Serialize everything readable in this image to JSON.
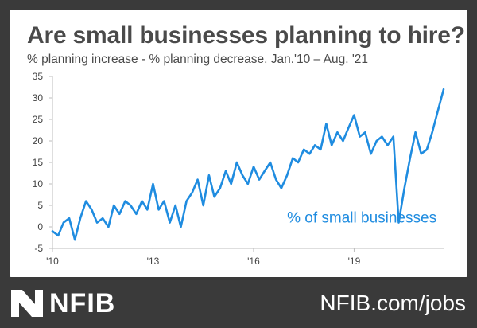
{
  "chart_data": {
    "type": "line",
    "title": "Are small businesses planning to hire?",
    "subtitle": "% planning increase - % planning decrease, Jan.'10 – Aug. '21",
    "xlabel": "",
    "ylabel": "",
    "xlim": [
      2010.0,
      2021.67
    ],
    "ylim": [
      -5,
      35
    ],
    "y_ticks": [
      "35",
      "30",
      "25",
      "20",
      "15",
      "10",
      "5",
      "0",
      "-5"
    ],
    "x_ticks": [
      {
        "value": 2010,
        "label": "'10"
      },
      {
        "value": 2013,
        "label": "'13"
      },
      {
        "value": 2016,
        "label": "'16"
      },
      {
        "value": 2019,
        "label": "'19"
      }
    ],
    "grid": false,
    "series": [
      {
        "name": "% of small businesses",
        "color": "#1f8ce0",
        "points": [
          [
            2010.0,
            -1
          ],
          [
            2010.17,
            -2
          ],
          [
            2010.33,
            1
          ],
          [
            2010.5,
            2
          ],
          [
            2010.67,
            -3
          ],
          [
            2010.83,
            2
          ],
          [
            2011.0,
            6
          ],
          [
            2011.17,
            4
          ],
          [
            2011.33,
            1
          ],
          [
            2011.5,
            2
          ],
          [
            2011.67,
            0
          ],
          [
            2011.83,
            5
          ],
          [
            2012.0,
            3
          ],
          [
            2012.17,
            6
          ],
          [
            2012.33,
            5
          ],
          [
            2012.5,
            3
          ],
          [
            2012.67,
            6
          ],
          [
            2012.83,
            4
          ],
          [
            2013.0,
            10
          ],
          [
            2013.17,
            4
          ],
          [
            2013.33,
            6
          ],
          [
            2013.5,
            1
          ],
          [
            2013.67,
            5
          ],
          [
            2013.83,
            0
          ],
          [
            2014.0,
            6
          ],
          [
            2014.17,
            8
          ],
          [
            2014.33,
            11
          ],
          [
            2014.5,
            5
          ],
          [
            2014.67,
            12
          ],
          [
            2014.83,
            7
          ],
          [
            2015.0,
            9
          ],
          [
            2015.17,
            13
          ],
          [
            2015.33,
            10
          ],
          [
            2015.5,
            15
          ],
          [
            2015.67,
            12
          ],
          [
            2015.83,
            10
          ],
          [
            2016.0,
            14
          ],
          [
            2016.17,
            11
          ],
          [
            2016.33,
            13
          ],
          [
            2016.5,
            15
          ],
          [
            2016.67,
            11
          ],
          [
            2016.83,
            9
          ],
          [
            2017.0,
            12
          ],
          [
            2017.17,
            16
          ],
          [
            2017.33,
            15
          ],
          [
            2017.5,
            18
          ],
          [
            2017.67,
            17
          ],
          [
            2017.83,
            19
          ],
          [
            2018.0,
            18
          ],
          [
            2018.17,
            24
          ],
          [
            2018.33,
            19
          ],
          [
            2018.5,
            22
          ],
          [
            2018.67,
            20
          ],
          [
            2018.83,
            23
          ],
          [
            2019.0,
            26
          ],
          [
            2019.17,
            21
          ],
          [
            2019.33,
            22
          ],
          [
            2019.5,
            17
          ],
          [
            2019.67,
            20
          ],
          [
            2019.83,
            21
          ],
          [
            2020.0,
            19
          ],
          [
            2020.17,
            21
          ],
          [
            2020.33,
            1
          ],
          [
            2020.5,
            9
          ],
          [
            2020.67,
            16
          ],
          [
            2020.83,
            22
          ],
          [
            2021.0,
            17
          ],
          [
            2021.17,
            18
          ],
          [
            2021.33,
            22
          ],
          [
            2021.5,
            27
          ],
          [
            2021.67,
            32
          ]
        ]
      }
    ]
  },
  "footer": {
    "brand": "NFIB",
    "website": "NFIB.com/jobs"
  },
  "icons": {
    "logo": "nfib-arrow-logo-icon"
  }
}
